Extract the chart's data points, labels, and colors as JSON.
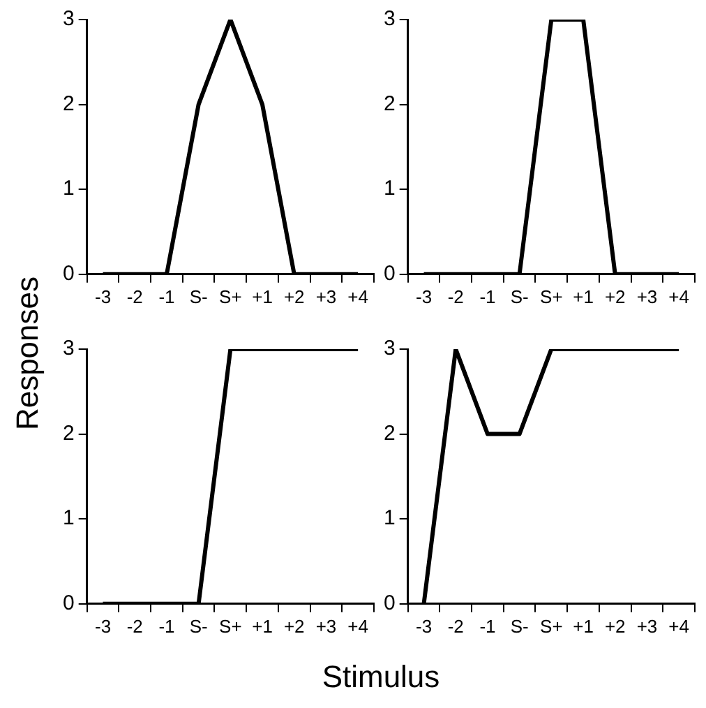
{
  "chart_data": [
    {
      "type": "line",
      "ylabel": "Responses",
      "categories": [
        "-3",
        "-2",
        "-1",
        "S-",
        "S+",
        "+1",
        "+2",
        "+3",
        "+4"
      ],
      "series": [
        {
          "color": "#000000",
          "values": [
            0,
            0,
            0,
            2,
            3,
            2,
            0,
            0,
            0
          ]
        }
      ],
      "ylim": [
        0,
        3
      ],
      "yticks": [
        0,
        1,
        2,
        3
      ],
      "grid": false,
      "legend": false
    },
    {
      "type": "line",
      "categories": [
        "-3",
        "-2",
        "-1",
        "S-",
        "S+",
        "+1",
        "+2",
        "+3",
        "+4"
      ],
      "series": [
        {
          "color": "#000000",
          "values": [
            0,
            0,
            0,
            0,
            3,
            3,
            0,
            0,
            0
          ]
        }
      ],
      "ylim": [
        0,
        3
      ],
      "yticks": [
        0,
        1,
        2,
        3
      ],
      "grid": false,
      "legend": false
    },
    {
      "type": "line",
      "categories": [
        "-3",
        "-2",
        "-1",
        "S-",
        "S+",
        "+1",
        "+2",
        "+3",
        "+4"
      ],
      "series": [
        {
          "color": "#000000",
          "values": [
            0,
            0,
            0,
            0,
            3,
            3,
            3,
            3,
            3
          ]
        }
      ],
      "ylim": [
        0,
        3
      ],
      "yticks": [
        0,
        1,
        2,
        3
      ],
      "grid": false,
      "legend": false
    },
    {
      "type": "line",
      "xlabel": "Stimulus",
      "categories": [
        "-3",
        "-2",
        "-1",
        "S-",
        "S+",
        "+1",
        "+2",
        "+3",
        "+4"
      ],
      "series": [
        {
          "color": "#000000",
          "values": [
            0,
            3,
            2,
            2,
            3,
            3,
            3,
            3,
            3
          ]
        }
      ],
      "ylim": [
        0,
        3
      ],
      "yticks": [
        0,
        1,
        2,
        3
      ],
      "grid": false,
      "legend": false
    }
  ]
}
